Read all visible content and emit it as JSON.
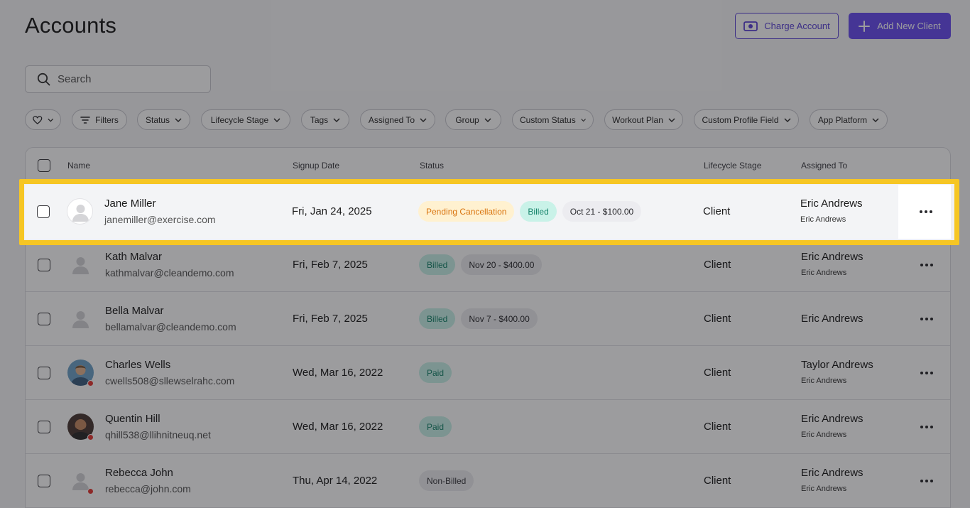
{
  "header": {
    "title": "Accounts",
    "charge_account_label": "Charge Account",
    "add_client_label": "Add New Client"
  },
  "search": {
    "placeholder": "Search"
  },
  "filters": {
    "favorites_icon": "heart-icon",
    "chips": [
      "Filters",
      "Status",
      "Lifecycle Stage",
      "Tags",
      "Assigned To",
      "Group",
      "Custom Status",
      "Workout Plan",
      "Custom Profile Field",
      "App Platform"
    ]
  },
  "table": {
    "columns": {
      "name": "Name",
      "signup": "Signup Date",
      "status": "Status",
      "lifecycle": "Lifecycle Stage",
      "assigned": "Assigned To"
    },
    "rows": [
      {
        "name": "Jane Miller",
        "email": "janemiller@exercise.com",
        "signup": "Fri, Jan 24, 2025",
        "badges": [
          {
            "label": "Pending Cancellation",
            "kind": "pending"
          },
          {
            "label": "Billed",
            "kind": "billed"
          },
          {
            "label": "Oct 21 - $100.00",
            "kind": "info"
          }
        ],
        "lifecycle": "Client",
        "assigned": "Eric Andrews",
        "assigned_sub": "Eric Andrews"
      },
      {
        "name": "Kath Malvar",
        "email": "kathmalvar@cleandemo.com",
        "signup": "Fri, Feb 7, 2025",
        "badges": [
          {
            "label": "Billed",
            "kind": "billed"
          },
          {
            "label": "Nov 20 - $400.00",
            "kind": "info"
          }
        ],
        "lifecycle": "Client",
        "assigned": "Eric Andrews",
        "assigned_sub": "Eric Andrews"
      },
      {
        "name": "Bella Malvar",
        "email": "bellamalvar@cleandemo.com",
        "signup": "Fri, Feb 7, 2025",
        "badges": [
          {
            "label": "Billed",
            "kind": "billed"
          },
          {
            "label": "Nov 7 - $400.00",
            "kind": "info"
          }
        ],
        "lifecycle": "Client",
        "assigned": "Eric Andrews",
        "assigned_sub": ""
      },
      {
        "name": "Charles Wells",
        "email": "cwells508@sllewselrahc.com",
        "signup": "Wed, Mar 16, 2022",
        "badges": [
          {
            "label": "Paid",
            "kind": "paid"
          }
        ],
        "lifecycle": "Client",
        "assigned": "Taylor Andrews",
        "assigned_sub": "Eric Andrews"
      },
      {
        "name": "Quentin Hill",
        "email": "qhill538@llihnitneuq.net",
        "signup": "Wed, Mar 16, 2022",
        "badges": [
          {
            "label": "Paid",
            "kind": "paid"
          }
        ],
        "lifecycle": "Client",
        "assigned": "Eric Andrews",
        "assigned_sub": "Eric Andrews"
      },
      {
        "name": "Rebecca John",
        "email": "rebecca@john.com",
        "signup": "Thu, Apr 14, 2022",
        "badges": [
          {
            "label": "Non-Billed",
            "kind": "non"
          }
        ],
        "lifecycle": "Client",
        "assigned": "Eric Andrews",
        "assigned_sub": "Eric Andrews"
      }
    ]
  },
  "colors": {
    "accent": "#6a4ff0",
    "highlight": "#f6c624",
    "pending": "#d9740e",
    "billed": "#16846b"
  }
}
